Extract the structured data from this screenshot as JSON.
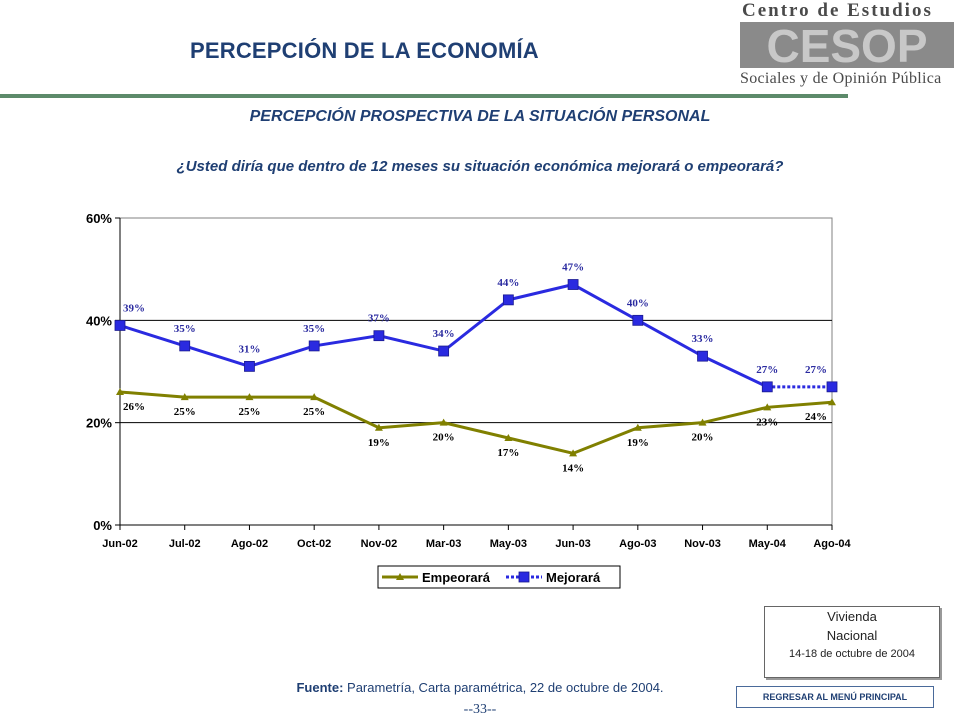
{
  "header": {
    "title": "PERCEPCIÓN DE LA ECONOMÍA",
    "logo_top": "Centro de Estudios",
    "logo_mark": "CESOP",
    "logo_bottom": "Sociales y de Opinión Pública",
    "rule_color": "#5c8a6a"
  },
  "subtitle": "PERCEPCIÓN PROSPECTIVA DE LA SITUACIÓN PERSONAL",
  "question": "¿Usted diría que dentro de 12 meses su situación económica mejorará o empeorará?",
  "chart_data": {
    "type": "line",
    "categories": [
      "Jun-02",
      "Jul-02",
      "Ago-02",
      "Oct-02",
      "Nov-02",
      "Mar-03",
      "May-03",
      "Jun-03",
      "Ago-03",
      "Nov-03",
      "May-04",
      "Ago-04"
    ],
    "series": [
      {
        "name": "Empeorará",
        "color": "#808000",
        "marker": "triangle",
        "values": [
          26,
          25,
          25,
          25,
          19,
          20,
          17,
          14,
          19,
          20,
          23,
          24
        ],
        "labels": [
          "26%",
          "25%",
          "25%",
          "25%",
          "19%",
          "20%",
          "17%",
          "14%",
          "19%",
          "20%",
          "23%",
          "24%"
        ]
      },
      {
        "name": "Mejorará",
        "color": "#2a2ae0",
        "marker": "square",
        "values": [
          39,
          35,
          31,
          35,
          37,
          34,
          44,
          47,
          40,
          33,
          27,
          27
        ],
        "labels": [
          "39%",
          "35%",
          "31%",
          "35%",
          "37%",
          "34%",
          "44%",
          "47%",
          "40%",
          "33%",
          "27%",
          "27%"
        ]
      }
    ],
    "y_ticks": [
      "0%",
      "20%",
      "40%",
      "60%"
    ],
    "ylim": [
      0,
      60
    ],
    "grid": true,
    "legend_position": "bottom"
  },
  "note": {
    "line1": "Vivienda",
    "line2": "Nacional",
    "line3": "14-18 de octubre de 2004"
  },
  "source": {
    "label": "Fuente:",
    "text": "Parametría, Carta paramétrica, 22 de octubre de 2004."
  },
  "page_number": "--33--",
  "menu_button": "REGRESAR AL MENÚ PRINCIPAL"
}
